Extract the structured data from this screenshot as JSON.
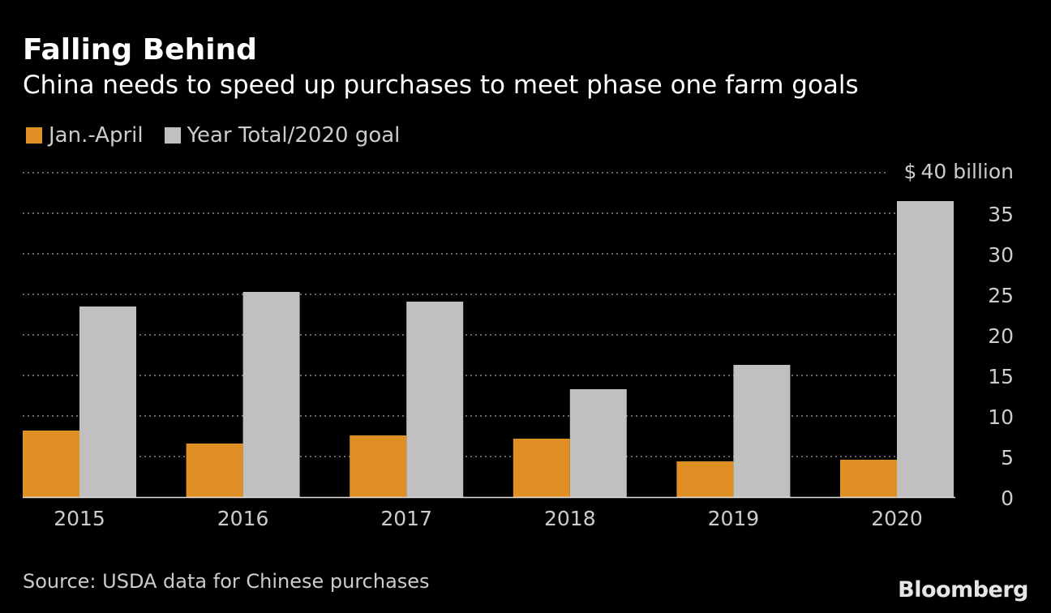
{
  "colors": {
    "background": "#000000",
    "jan_april": "#e08f24",
    "year_total": "#c0c0c0",
    "gridline": "#8a8a8a",
    "axis_text": "#cccccc"
  },
  "header": {
    "title": "Falling Behind",
    "subtitle": "China needs to speed up purchases to meet phase one farm goals"
  },
  "footer": {
    "source": "Source: USDA data for Chinese purchases",
    "brand": "Bloomberg"
  },
  "chart_data": {
    "type": "bar",
    "title": "Falling Behind",
    "subtitle": "China needs to speed up purchases to meet phase one farm goals",
    "categories": [
      "2015",
      "2016",
      "2017",
      "2018",
      "2019",
      "2020"
    ],
    "series": [
      {
        "name": "Jan.-April",
        "values": [
          8.2,
          6.6,
          7.6,
          7.2,
          4.4,
          4.6
        ]
      },
      {
        "name": "Year Total/2020 goal",
        "values": [
          23.5,
          25.3,
          24.1,
          13.3,
          16.3,
          36.5
        ]
      }
    ],
    "xlabel": "",
    "ylabel": "",
    "ylim": [
      0,
      40
    ],
    "yticks": [
      "0",
      "5",
      "10",
      "15",
      "20",
      "25",
      "30",
      "35"
    ],
    "top_tick_label": {
      "prefix": "$",
      "value": "40",
      "unit": "billion"
    },
    "grid": true,
    "legend_position": "top-left"
  }
}
